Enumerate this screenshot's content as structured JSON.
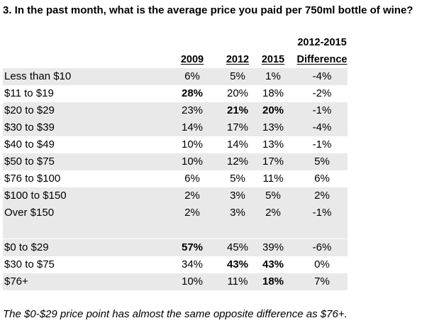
{
  "title": "3. In the past month, what is the average price you paid per 750ml bottle of wine?",
  "headers": {
    "diff_top": "2012-2015",
    "y2009": "2009",
    "y2012": "2012",
    "y2015": "2015",
    "diff": "Difference"
  },
  "rows": [
    {
      "label": "Less than $10",
      "y2009": "6%",
      "y2012": "5%",
      "y2015": "1%",
      "diff": "-4%"
    },
    {
      "label": "$11 to $19",
      "y2009": "28%",
      "y2012": "20%",
      "y2015": "18%",
      "diff": "-2%"
    },
    {
      "label": "$20 to $29",
      "y2009": "23%",
      "y2012": "21%",
      "y2015": "20%",
      "diff": "-1%"
    },
    {
      "label": "$30 to $39",
      "y2009": "14%",
      "y2012": "17%",
      "y2015": "13%",
      "diff": "-4%"
    },
    {
      "label": "$40 to $49",
      "y2009": "10%",
      "y2012": "14%",
      "y2015": "13%",
      "diff": "-1%"
    },
    {
      "label": "$50 to $75",
      "y2009": "10%",
      "y2012": "12%",
      "y2015": "17%",
      "diff": "5%"
    },
    {
      "label": "$76 to $100",
      "y2009": "6%",
      "y2012": "5%",
      "y2015": "11%",
      "diff": "6%"
    },
    {
      "label": "$100 to $150",
      "y2009": "2%",
      "y2012": "3%",
      "y2015": "5%",
      "diff": "2%"
    },
    {
      "label": "Over $150",
      "y2009": "2%",
      "y2012": "3%",
      "y2015": "2%",
      "diff": "-1%"
    }
  ],
  "summary_rows": [
    {
      "label": "$0 to $29",
      "y2009": "57%",
      "y2012": "45%",
      "y2015": "39%",
      "diff": "-6%"
    },
    {
      "label": "$30 to $75",
      "y2009": "34%",
      "y2012": "43%",
      "y2015": "43%",
      "diff": "0%"
    },
    {
      "label": "$76+",
      "y2009": "10%",
      "y2012": "11%",
      "y2015": "18%",
      "diff": "7%"
    }
  ],
  "note": "The $0-$29 price point has almost the same opposite difference as $76+.",
  "colors": {
    "row_shade": "#e9e9e9"
  }
}
